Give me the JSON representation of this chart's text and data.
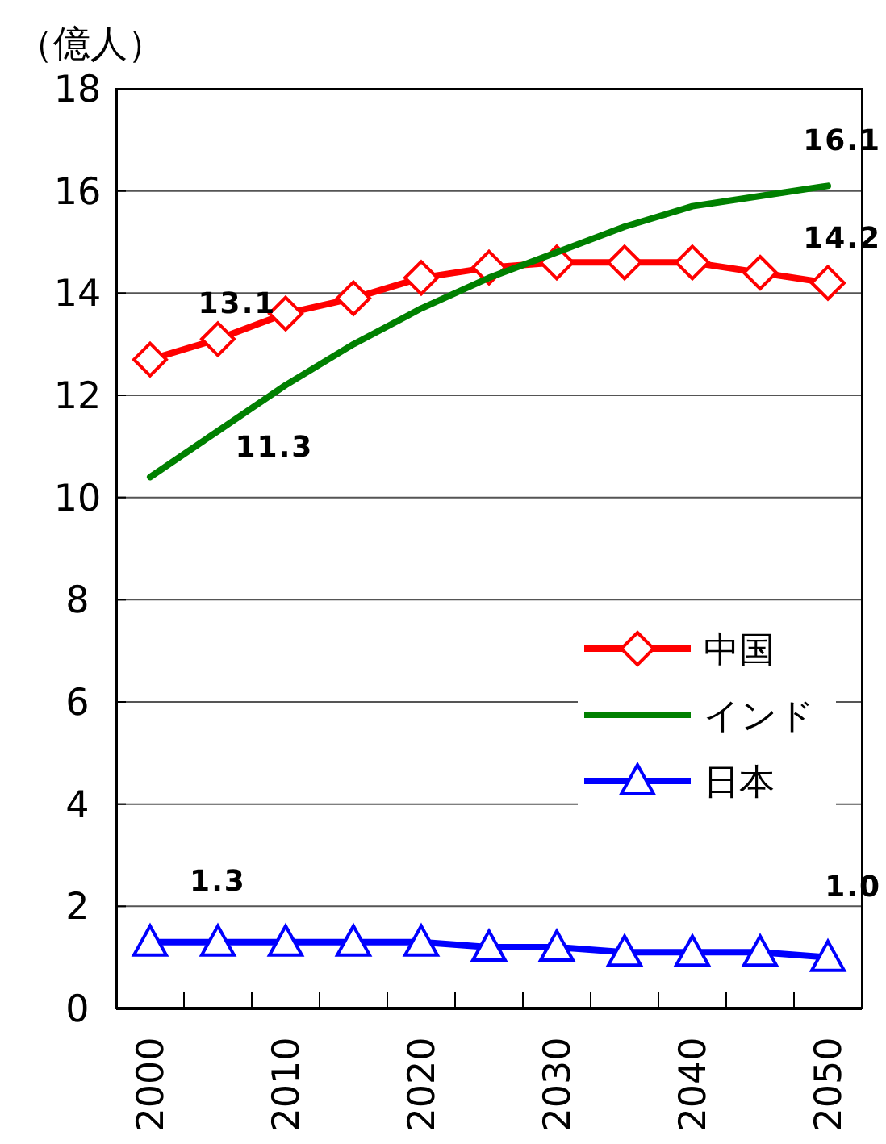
{
  "chart_data": {
    "type": "line",
    "ylabel": "（億人）",
    "x": [
      2000,
      2005,
      2010,
      2015,
      2020,
      2025,
      2030,
      2035,
      2040,
      2045,
      2050
    ],
    "series": [
      {
        "name": "中国",
        "color": "#ff0000",
        "marker": "diamond",
        "values": [
          12.7,
          13.1,
          13.6,
          13.9,
          14.3,
          14.5,
          14.6,
          14.6,
          14.6,
          14.4,
          14.2
        ],
        "value_labels": [
          null,
          "13.1",
          null,
          null,
          null,
          null,
          null,
          null,
          null,
          null,
          "14.2"
        ]
      },
      {
        "name": "インド",
        "color": "#008000",
        "marker": "none",
        "values": [
          10.4,
          11.3,
          12.2,
          13.0,
          13.7,
          14.3,
          14.8,
          15.3,
          15.7,
          15.9,
          16.1
        ],
        "value_labels": [
          null,
          "11.3",
          null,
          null,
          null,
          null,
          null,
          null,
          null,
          null,
          "16.1"
        ]
      },
      {
        "name": "日本",
        "color": "#0000ff",
        "marker": "triangle",
        "values": [
          1.3,
          1.3,
          1.3,
          1.3,
          1.3,
          1.2,
          1.2,
          1.1,
          1.1,
          1.1,
          1.0
        ],
        "value_labels": [
          null,
          "1.3",
          null,
          null,
          null,
          null,
          null,
          null,
          null,
          null,
          "1.0"
        ]
      }
    ],
    "xlim": [
      1997.5,
      2052.5
    ],
    "xticks": [
      2000,
      {
        "value": 2002.5,
        "label": null
      },
      {
        "value": 2007.5,
        "label": null
      },
      2010,
      {
        "value": 2012.5,
        "label": null
      },
      {
        "value": 2017.5,
        "label": null
      },
      2020,
      {
        "value": 2022.5,
        "label": null
      },
      {
        "value": 2027.5,
        "label": null
      },
      2030,
      {
        "value": 2032.5,
        "label": null
      },
      {
        "value": 2037.5,
        "label": null
      },
      2040,
      {
        "value": 2042.5,
        "label": null
      },
      {
        "value": 2047.5,
        "label": null
      },
      2050
    ],
    "ylim": [
      0,
      18
    ],
    "yticks": [
      0,
      2,
      4,
      6,
      8,
      10,
      12,
      14,
      16,
      18
    ],
    "grid": "y",
    "legend": "right"
  }
}
